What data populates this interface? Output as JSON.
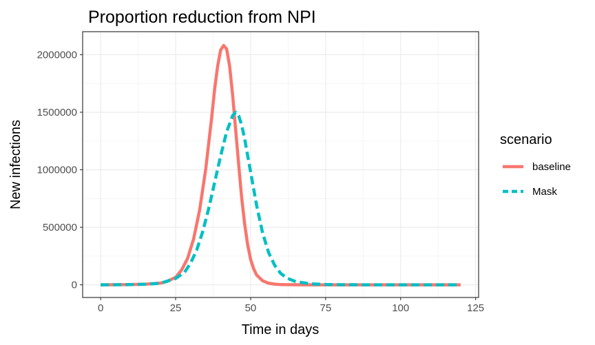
{
  "chart_data": {
    "type": "line",
    "title": "Proportion reduction from NPI",
    "xlabel": "Time in days",
    "ylabel": "New infections",
    "xlim": [
      -6,
      126
    ],
    "ylim": [
      -110000,
      2200000
    ],
    "x_ticks": [
      0,
      25,
      50,
      75,
      100,
      125
    ],
    "x_tick_labels": [
      "0",
      "25",
      "50",
      "75",
      "100",
      "125"
    ],
    "y_ticks": [
      0,
      500000,
      1000000,
      1500000,
      2000000
    ],
    "y_tick_labels": [
      "0",
      "500000",
      "1000000",
      "1500000",
      "2000000"
    ],
    "grid": true,
    "legend_title": "scenario",
    "legend_position": "right",
    "series": [
      {
        "name": "baseline",
        "color": "#F8766D",
        "line_style": "solid",
        "x": [
          0,
          10,
          15,
          20,
          22,
          25,
          27,
          29,
          31,
          33,
          35,
          37,
          38,
          39,
          40,
          41,
          42,
          43,
          44,
          45,
          46,
          47,
          48,
          49,
          50,
          51,
          52,
          54,
          56,
          58,
          60,
          65,
          70,
          80,
          90,
          100,
          110,
          120
        ],
        "values": [
          0,
          2000,
          6000,
          15000,
          28000,
          65000,
          130000,
          230000,
          400000,
          650000,
          1000000,
          1450000,
          1700000,
          1900000,
          2040000,
          2080000,
          2050000,
          1900000,
          1650000,
          1350000,
          1050000,
          760000,
          530000,
          350000,
          220000,
          140000,
          85000,
          35000,
          14000,
          6000,
          2500,
          600,
          100,
          0,
          0,
          0,
          0,
          0
        ]
      },
      {
        "name": "Mask",
        "color": "#00BFC4",
        "line_style": "dashed",
        "x": [
          0,
          10,
          15,
          20,
          25,
          28,
          30,
          32,
          34,
          36,
          38,
          40,
          42,
          44,
          45,
          46,
          47,
          48,
          50,
          52,
          54,
          56,
          58,
          60,
          62,
          65,
          70,
          75,
          80,
          90,
          100,
          110,
          120
        ],
        "values": [
          0,
          2000,
          5000,
          14000,
          55000,
          110000,
          190000,
          300000,
          460000,
          660000,
          890000,
          1120000,
          1330000,
          1470000,
          1500000,
          1470000,
          1390000,
          1270000,
          980000,
          690000,
          450000,
          280000,
          170000,
          100000,
          60000,
          28000,
          9000,
          3000,
          1000,
          0,
          0,
          0,
          0
        ]
      }
    ]
  }
}
